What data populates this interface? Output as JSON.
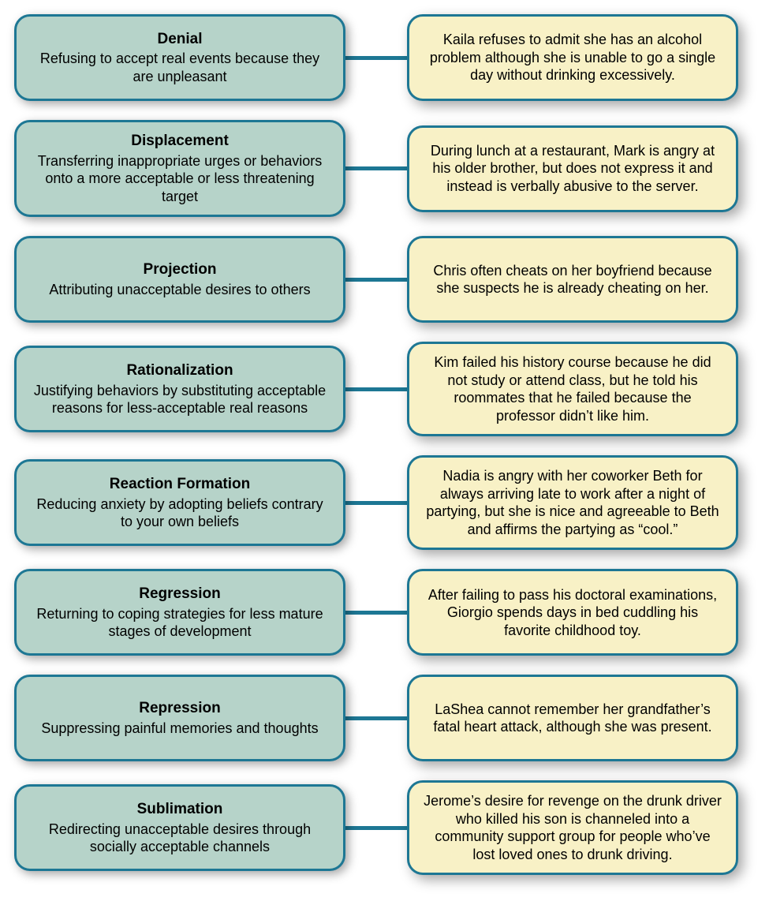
{
  "style": {
    "left_bg": "#b6d3c9",
    "right_bg": "#f8f1c6",
    "border_color": "#1d7794",
    "border_width": 3,
    "connector_color": "#1d7794",
    "connector_height": 5,
    "border_radius": 20,
    "font_family": "Arial, Helvetica, sans-serif",
    "title_fontsize": 19,
    "body_fontsize": 18,
    "title_weight": "bold",
    "shadow_color": "rgba(0,0,0,0.35)"
  },
  "rows": [
    {
      "term": "Denial",
      "definition": "Refusing to accept real events because they are unpleasant",
      "example": "Kaila refuses to admit she has an alcohol problem although she is unable to go a single day without drinking excessively."
    },
    {
      "term": "Displacement",
      "definition": "Transferring inappropriate urges or behaviors onto a more acceptable or less threatening target",
      "example": "During lunch at a restaurant, Mark is angry at his older brother, but does not express it and instead is verbally abusive to the server."
    },
    {
      "term": "Projection",
      "definition": "Attributing unacceptable desires to others",
      "example": "Chris often cheats on her boyfriend because she suspects he is already cheating on her."
    },
    {
      "term": "Rationalization",
      "definition": "Justifying behaviors by substituting acceptable reasons for less-acceptable real reasons",
      "example": "Kim failed his history course because he did not study or attend class, but he told his roommates that he failed because the professor didn’t like him."
    },
    {
      "term": "Reaction Formation",
      "definition": "Reducing anxiety by adopting beliefs contrary to your own beliefs",
      "example": "Nadia is angry with her coworker Beth for always arriving late to work after a night of partying, but she is nice and agreeable to Beth and affirms the partying as “cool.”"
    },
    {
      "term": "Regression",
      "definition": "Returning to coping strategies for less mature stages of development",
      "example": "After failing to pass his doctoral examinations, Giorgio spends days in bed cuddling his favorite childhood toy."
    },
    {
      "term": "Repression",
      "definition": "Suppressing painful memories and thoughts",
      "example": "LaShea cannot remember her grandfather’s fatal heart attack, although she was present."
    },
    {
      "term": "Sublimation",
      "definition": "Redirecting unacceptable desires through socially acceptable channels",
      "example": "Jerome’s desire for revenge on the drunk driver who killed his son is channeled into a community support group for people who’ve lost loved ones to drunk driving."
    }
  ]
}
